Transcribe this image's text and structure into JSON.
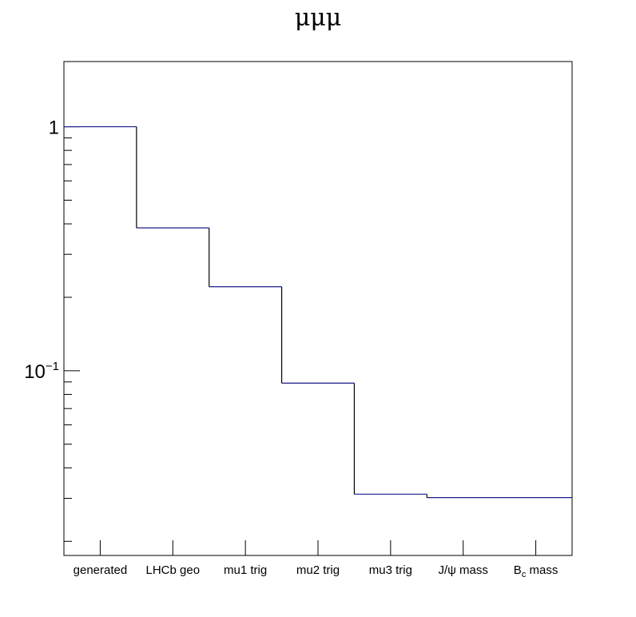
{
  "chart_data": {
    "type": "bar",
    "style": "step-histogram",
    "title": "μμμ",
    "categories": [
      "generated",
      "LHCb geo",
      "mu1 trig",
      "mu2 trig",
      "mu3 trig",
      "J/ψ mass",
      "B_c mass"
    ],
    "category_display": [
      {
        "main": "generated",
        "sub": "",
        "tail": ""
      },
      {
        "main": "LHCb geo",
        "sub": "",
        "tail": ""
      },
      {
        "main": "mu1 trig",
        "sub": "",
        "tail": ""
      },
      {
        "main": "mu2 trig",
        "sub": "",
        "tail": ""
      },
      {
        "main": "mu3 trig",
        "sub": "",
        "tail": ""
      },
      {
        "main": "J/ψ mass",
        "sub": "",
        "tail": ""
      },
      {
        "main": "B",
        "sub": "c",
        "tail": " mass"
      }
    ],
    "values": [
      1.0,
      0.385,
      0.221,
      0.089,
      0.0312,
      0.0302,
      0.0302
    ],
    "xlabel": "",
    "ylabel": "",
    "yscale": "log",
    "ylim": [
      0.0175,
      1.85
    ],
    "yticks": [
      {
        "value": 1,
        "label": "1",
        "exp": ""
      },
      {
        "value": 0.1,
        "label": "10",
        "exp": "−1"
      }
    ],
    "grid": false,
    "legend": "none",
    "colors": {
      "line": "#1a1a8c",
      "axis": "#000000"
    }
  }
}
